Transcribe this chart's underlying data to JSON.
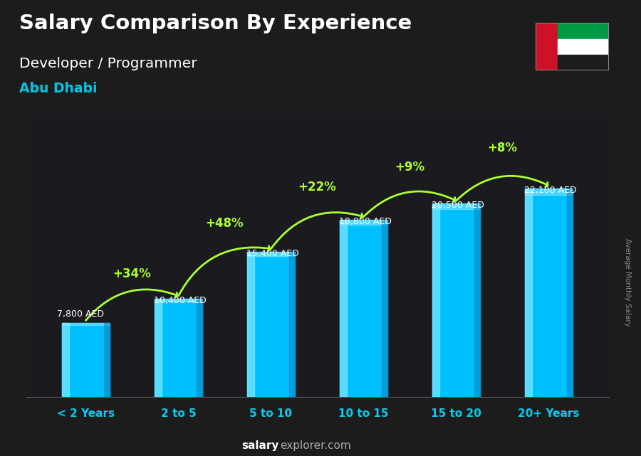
{
  "title_line1": "Salary Comparison By Experience",
  "title_line2": "Developer / Programmer",
  "title_line3": "Abu Dhabi",
  "categories": [
    "< 2 Years",
    "2 to 5",
    "5 to 10",
    "10 to 15",
    "15 to 20",
    "20+ Years"
  ],
  "values": [
    7800,
    10400,
    15400,
    18800,
    20500,
    22100
  ],
  "value_labels": [
    "7,800 AED",
    "10,400 AED",
    "15,400 AED",
    "18,800 AED",
    "20,500 AED",
    "22,100 AED"
  ],
  "pct_labels": [
    "+34%",
    "+48%",
    "+22%",
    "+9%",
    "+8%"
  ],
  "bar_color_main": "#00BFFF",
  "bar_color_light": "#40D0FF",
  "bar_color_highlight": "#80E8FF",
  "bar_color_dark": "#0080BB",
  "pct_color": "#ADFF2F",
  "value_color": "#FFFFFF",
  "label_color": "#00CFEF",
  "title1_color": "#FFFFFF",
  "title2_color": "#FFFFFF",
  "title3_color": "#00C8E8",
  "footer_salary_color": "#FFFFFF",
  "footer_explorer_color": "#AAAAAA",
  "background_color": "#1C1C1C",
  "ylabel_text": "Average Monthly Salary",
  "ylim": [
    0,
    30000
  ],
  "bar_width": 0.52
}
